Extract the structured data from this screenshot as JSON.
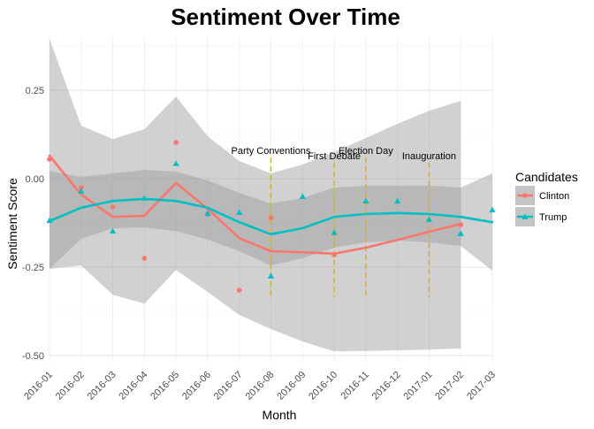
{
  "chart_data": {
    "type": "scatter",
    "title": "Sentiment Over Time",
    "xlabel": "Month",
    "ylabel": "Sentiment Score",
    "x_ticks": [
      "2016-01",
      "2016-02",
      "2016-03",
      "2016-04",
      "2016-05",
      "2016-06",
      "2016-07",
      "2016-08",
      "2016-09",
      "2016-10",
      "2016-11",
      "2016-12",
      "2017-01",
      "2017-02",
      "2017-03"
    ],
    "y_ticks": [
      0.25,
      0.0,
      -0.25,
      -0.5
    ],
    "y_tick_labels": [
      "0.25",
      "0.00",
      "-0.25",
      "-0.50"
    ],
    "ylim": [
      -0.52,
      0.4
    ],
    "grid": true,
    "legend": {
      "title": "Candidates",
      "placement": "right",
      "entries": [
        "Clinton",
        "Trump"
      ]
    },
    "series": [
      {
        "name": "Clinton",
        "color": "#F8766D",
        "marker": "circle",
        "points": [
          {
            "x": "2016-01",
            "y": 0.055
          },
          {
            "x": "2016-02",
            "y": -0.025
          },
          {
            "x": "2016-03",
            "y": -0.08
          },
          {
            "x": "2016-04",
            "y": -0.225
          },
          {
            "x": "2016-05",
            "y": 0.102
          },
          {
            "x": "2016-06",
            "y": -0.1
          },
          {
            "x": "2016-07",
            "y": -0.315
          },
          {
            "x": "2016-08",
            "y": -0.11
          },
          {
            "x": "2016-10",
            "y": -0.215
          },
          {
            "x": "2017-02",
            "y": -0.13
          }
        ],
        "smooth": [
          {
            "x": "2016-01",
            "y": 0.065
          },
          {
            "x": "2016-02",
            "y": -0.045
          },
          {
            "x": "2016-03",
            "y": -0.108
          },
          {
            "x": "2016-04",
            "y": -0.105
          },
          {
            "x": "2016-05",
            "y": -0.012
          },
          {
            "x": "2016-06",
            "y": -0.085
          },
          {
            "x": "2016-07",
            "y": -0.168
          },
          {
            "x": "2016-08",
            "y": -0.205
          },
          {
            "x": "2016-09",
            "y": -0.208
          },
          {
            "x": "2016-10",
            "y": -0.212
          },
          {
            "x": "2016-11",
            "y": -0.195
          },
          {
            "x": "2016-12",
            "y": -0.173
          },
          {
            "x": "2017-01",
            "y": -0.15
          },
          {
            "x": "2017-02",
            "y": -0.128
          }
        ],
        "band_upper": [
          0.395,
          0.15,
          0.112,
          0.14,
          0.232,
          0.12,
          0.05,
          0.015,
          0.04,
          0.075,
          0.115,
          0.155,
          0.192,
          0.22
        ],
        "band_lower": [
          -0.255,
          -0.245,
          -0.328,
          -0.353,
          -0.258,
          -0.32,
          -0.385,
          -0.425,
          -0.46,
          -0.488,
          -0.487,
          -0.485,
          -0.483,
          -0.48
        ]
      },
      {
        "name": "Trump",
        "color": "#00BFC4",
        "marker": "triangle",
        "points": [
          {
            "x": "2016-01",
            "y": -0.118
          },
          {
            "x": "2016-02",
            "y": -0.035
          },
          {
            "x": "2016-03",
            "y": -0.148
          },
          {
            "x": "2016-04",
            "y": -0.055
          },
          {
            "x": "2016-05",
            "y": 0.043
          },
          {
            "x": "2016-06",
            "y": -0.098
          },
          {
            "x": "2016-07",
            "y": -0.095
          },
          {
            "x": "2016-08",
            "y": -0.275
          },
          {
            "x": "2016-09",
            "y": -0.05
          },
          {
            "x": "2016-10",
            "y": -0.152
          },
          {
            "x": "2016-11",
            "y": -0.063
          },
          {
            "x": "2016-12",
            "y": -0.063
          },
          {
            "x": "2017-01",
            "y": -0.115
          },
          {
            "x": "2017-02",
            "y": -0.155
          },
          {
            "x": "2017-03",
            "y": -0.088
          }
        ],
        "smooth": [
          {
            "x": "2016-01",
            "y": -0.12
          },
          {
            "x": "2016-02",
            "y": -0.082
          },
          {
            "x": "2016-03",
            "y": -0.063
          },
          {
            "x": "2016-04",
            "y": -0.057
          },
          {
            "x": "2016-05",
            "y": -0.063
          },
          {
            "x": "2016-06",
            "y": -0.082
          },
          {
            "x": "2016-07",
            "y": -0.123
          },
          {
            "x": "2016-08",
            "y": -0.157
          },
          {
            "x": "2016-09",
            "y": -0.14
          },
          {
            "x": "2016-10",
            "y": -0.108
          },
          {
            "x": "2016-11",
            "y": -0.1
          },
          {
            "x": "2016-12",
            "y": -0.097
          },
          {
            "x": "2017-01",
            "y": -0.1
          },
          {
            "x": "2017-02",
            "y": -0.108
          },
          {
            "x": "2017-03",
            "y": -0.123
          }
        ],
        "band_upper": [
          0.022,
          0.005,
          0.015,
          0.025,
          0.02,
          -0.005,
          -0.04,
          -0.07,
          -0.055,
          -0.025,
          -0.02,
          -0.02,
          -0.02,
          -0.025,
          0.015
        ],
        "band_lower": [
          -0.255,
          -0.17,
          -0.14,
          -0.138,
          -0.148,
          -0.172,
          -0.205,
          -0.245,
          -0.225,
          -0.195,
          -0.18,
          -0.175,
          -0.18,
          -0.19,
          -0.26
        ]
      }
    ],
    "annotations": [
      {
        "label": "Party Conventions",
        "x": "2016-08",
        "y_top": 0.07,
        "y_bottom": -0.335
      },
      {
        "label": "First Debate",
        "x": "2016-10",
        "y_top": 0.055,
        "y_bottom": -0.335
      },
      {
        "label": "Election Day",
        "x": "2016-11",
        "y_top": 0.07,
        "y_bottom": -0.335
      },
      {
        "label": "Inauguration",
        "x": "2017-01",
        "y_top": 0.055,
        "y_bottom": -0.335
      }
    ],
    "annotation_color": "#D4B13B"
  }
}
